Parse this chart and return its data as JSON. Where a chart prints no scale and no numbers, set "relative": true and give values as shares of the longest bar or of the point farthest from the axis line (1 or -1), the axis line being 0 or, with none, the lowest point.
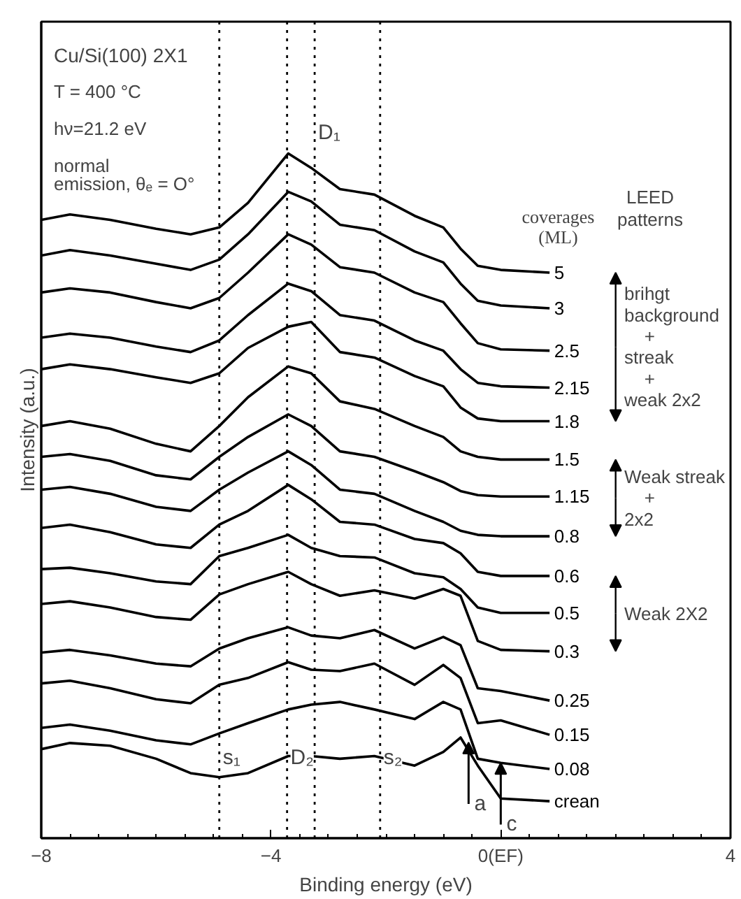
{
  "chart_data": {
    "type": "line",
    "relative": true,
    "title": "Cu/Si(100) 2X1",
    "subtitle": "T = 400 °C\nhν=21.2 eV\nnormal\nemission, θₑ = O°",
    "xlabel": "Binding energy (eV)",
    "ylabel": "Intensity (a.u.)",
    "legend_title": "coverages\n(ML)",
    "x": [
      -8,
      -7.5,
      -6.8,
      -6,
      -5.4,
      -4.9,
      -4.4,
      -3.7,
      -3.3,
      -2.8,
      -2.2,
      -1.5,
      -1.0,
      -0.7,
      -0.4,
      0,
      0.85
    ],
    "xlim": [
      -8,
      4
    ],
    "xticks": [
      -8,
      -4,
      {
        "value": 0,
        "label": "0(EF)"
      },
      4
    ],
    "tick_labels": "x",
    "grid": false,
    "legend": "right",
    "marker": "none",
    "line_style": "solid",
    "series": [
      {
        "name": "5",
        "color": "#000000",
        "values": [
          0.903,
          0.911,
          0.903,
          0.89,
          0.882,
          0.892,
          0.928,
          1.0,
          0.979,
          0.948,
          0.94,
          0.909,
          0.892,
          0.861,
          0.836,
          0.83,
          0.826
        ]
      },
      {
        "name": "3",
        "color": "#000000",
        "values": [
          0.851,
          0.859,
          0.851,
          0.839,
          0.83,
          0.845,
          0.882,
          0.944,
          0.93,
          0.896,
          0.888,
          0.857,
          0.841,
          0.81,
          0.785,
          0.778,
          0.774
        ]
      },
      {
        "name": "2.5",
        "color": "#000000",
        "values": [
          0.797,
          0.803,
          0.797,
          0.783,
          0.774,
          0.789,
          0.826,
          0.882,
          0.867,
          0.834,
          0.826,
          0.797,
          0.783,
          0.752,
          0.723,
          0.714,
          0.712
        ]
      },
      {
        "name": "2.15",
        "color": "#000000",
        "values": [
          0.731,
          0.737,
          0.731,
          0.718,
          0.71,
          0.727,
          0.764,
          0.81,
          0.799,
          0.764,
          0.756,
          0.727,
          0.712,
          0.685,
          0.665,
          0.66,
          0.658
        ]
      },
      {
        "name": "1.8",
        "color": "#000000",
        "values": [
          0.685,
          0.692,
          0.685,
          0.673,
          0.665,
          0.679,
          0.716,
          0.747,
          0.754,
          0.71,
          0.702,
          0.675,
          0.66,
          0.629,
          0.613,
          0.609,
          0.609
        ]
      },
      {
        "name": "1.5",
        "color": "#000000",
        "values": [
          0.602,
          0.609,
          0.598,
          0.576,
          0.565,
          0.602,
          0.644,
          0.689,
          0.679,
          0.638,
          0.627,
          0.602,
          0.586,
          0.565,
          0.557,
          0.553,
          0.553
        ]
      },
      {
        "name": "1.15",
        "color": "#000000",
        "values": [
          0.557,
          0.561,
          0.551,
          0.53,
          0.524,
          0.557,
          0.586,
          0.619,
          0.602,
          0.565,
          0.557,
          0.536,
          0.52,
          0.507,
          0.501,
          0.499,
          0.499
        ]
      },
      {
        "name": "0.8",
        "color": "#000000",
        "values": [
          0.509,
          0.513,
          0.503,
          0.484,
          0.478,
          0.509,
          0.534,
          0.565,
          0.545,
          0.509,
          0.503,
          0.478,
          0.462,
          0.449,
          0.443,
          0.441,
          0.441
        ]
      },
      {
        "name": "0.6",
        "color": "#000000",
        "values": [
          0.453,
          0.458,
          0.447,
          0.429,
          0.424,
          0.458,
          0.478,
          0.516,
          0.495,
          0.462,
          0.458,
          0.437,
          0.431,
          0.416,
          0.389,
          0.383,
          0.383
        ]
      },
      {
        "name": "0.5",
        "color": "#000000",
        "values": [
          0.393,
          0.395,
          0.387,
          0.375,
          0.371,
          0.412,
          0.424,
          0.443,
          0.424,
          0.412,
          0.41,
          0.387,
          0.381,
          0.364,
          0.337,
          0.329,
          0.329
        ]
      },
      {
        "name": "0.3",
        "color": "#000000",
        "values": [
          0.342,
          0.346,
          0.337,
          0.323,
          0.319,
          0.356,
          0.371,
          0.389,
          0.371,
          0.354,
          0.362,
          0.35,
          0.364,
          0.354,
          0.288,
          0.275,
          0.273
        ]
      },
      {
        "name": "0.25",
        "color": "#000000",
        "values": [
          0.271,
          0.275,
          0.267,
          0.255,
          0.251,
          0.277,
          0.292,
          0.308,
          0.296,
          0.292,
          0.304,
          0.277,
          0.294,
          0.282,
          0.219,
          0.215,
          0.201
        ]
      },
      {
        "name": "0.15",
        "color": "#000000",
        "values": [
          0.226,
          0.23,
          0.219,
          0.203,
          0.197,
          0.224,
          0.234,
          0.257,
          0.246,
          0.244,
          0.255,
          0.224,
          0.253,
          0.234,
          0.168,
          0.172,
          0.151
        ]
      },
      {
        "name": "0.08",
        "color": "#000000",
        "values": [
          0.161,
          0.166,
          0.157,
          0.143,
          0.137,
          0.153,
          0.168,
          0.188,
          0.195,
          0.199,
          0.188,
          0.174,
          0.199,
          0.188,
          0.116,
          0.11,
          0.101
        ]
      },
      {
        "name": "crean",
        "color": "#000000",
        "values": [
          0.13,
          0.139,
          0.135,
          0.116,
          0.095,
          0.089,
          0.095,
          0.12,
          0.12,
          0.116,
          0.12,
          0.106,
          0.126,
          0.147,
          0.106,
          0.058,
          0.054
        ]
      }
    ],
    "ref_lines": [
      {
        "axis": "x",
        "value": -4.9,
        "label": "s₁",
        "line_style": "dotted",
        "color": "#000000"
      },
      {
        "axis": "x",
        "value": -3.72,
        "label": "D₂",
        "line_style": "dotted",
        "color": "#000000"
      },
      {
        "axis": "x",
        "value": -3.24,
        "label": "D₁",
        "line_style": "dotted",
        "color": "#000000"
      },
      {
        "axis": "x",
        "value": -2.1,
        "label": "s₂",
        "line_style": "dotted",
        "color": "#000000"
      }
    ],
    "annotations": [
      "LEED\npatterns",
      "brihgt\nbackground\n+\nstreak\n+\nweak 2x2",
      "Weak streak\n+\n2x2",
      "Weak 2X2",
      {
        "text": "a",
        "x": -0.56,
        "y": 0.14
      },
      {
        "text": "c",
        "x": 0.0,
        "y": 0.11
      }
    ]
  }
}
